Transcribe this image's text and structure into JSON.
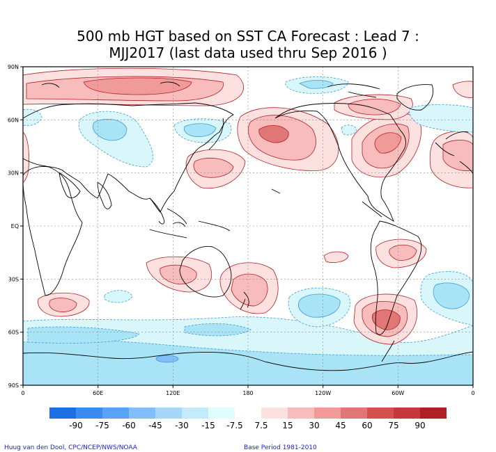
{
  "title": {
    "line1": "500 mb HGT based on SST CA Forecast : Lead 7 :",
    "line2": "MJJ2017 (last data used thru Sep 2016 )"
  },
  "lat_labels": [
    "90N",
    "60N",
    "30N",
    "EQ",
    "30S",
    "60S",
    "90S"
  ],
  "lon_labels": [
    "0",
    "60E",
    "120E",
    "180",
    "120W",
    "60W",
    "0"
  ],
  "colorbar": {
    "labels": [
      "-90",
      "-75",
      "-60",
      "-45",
      "-30",
      "-15",
      "-7.5",
      "7.5",
      "15",
      "30",
      "45",
      "60",
      "75",
      "90"
    ],
    "colors": [
      "#1e6ee6",
      "#3a8cf0",
      "#5aa2f5",
      "#82befa",
      "#a4d8fa",
      "#c2ecfa",
      "#e0fcfc",
      "#ffffff",
      "#fde0e0",
      "#f8bcbc",
      "#f19a9a",
      "#e07676",
      "#d65050",
      "#c83838",
      "#b02020"
    ]
  },
  "credits": {
    "left": "Huug van den Dool, CPC/NCEP/NWS/NOAA",
    "right": "Base Period 1981-2010"
  }
}
